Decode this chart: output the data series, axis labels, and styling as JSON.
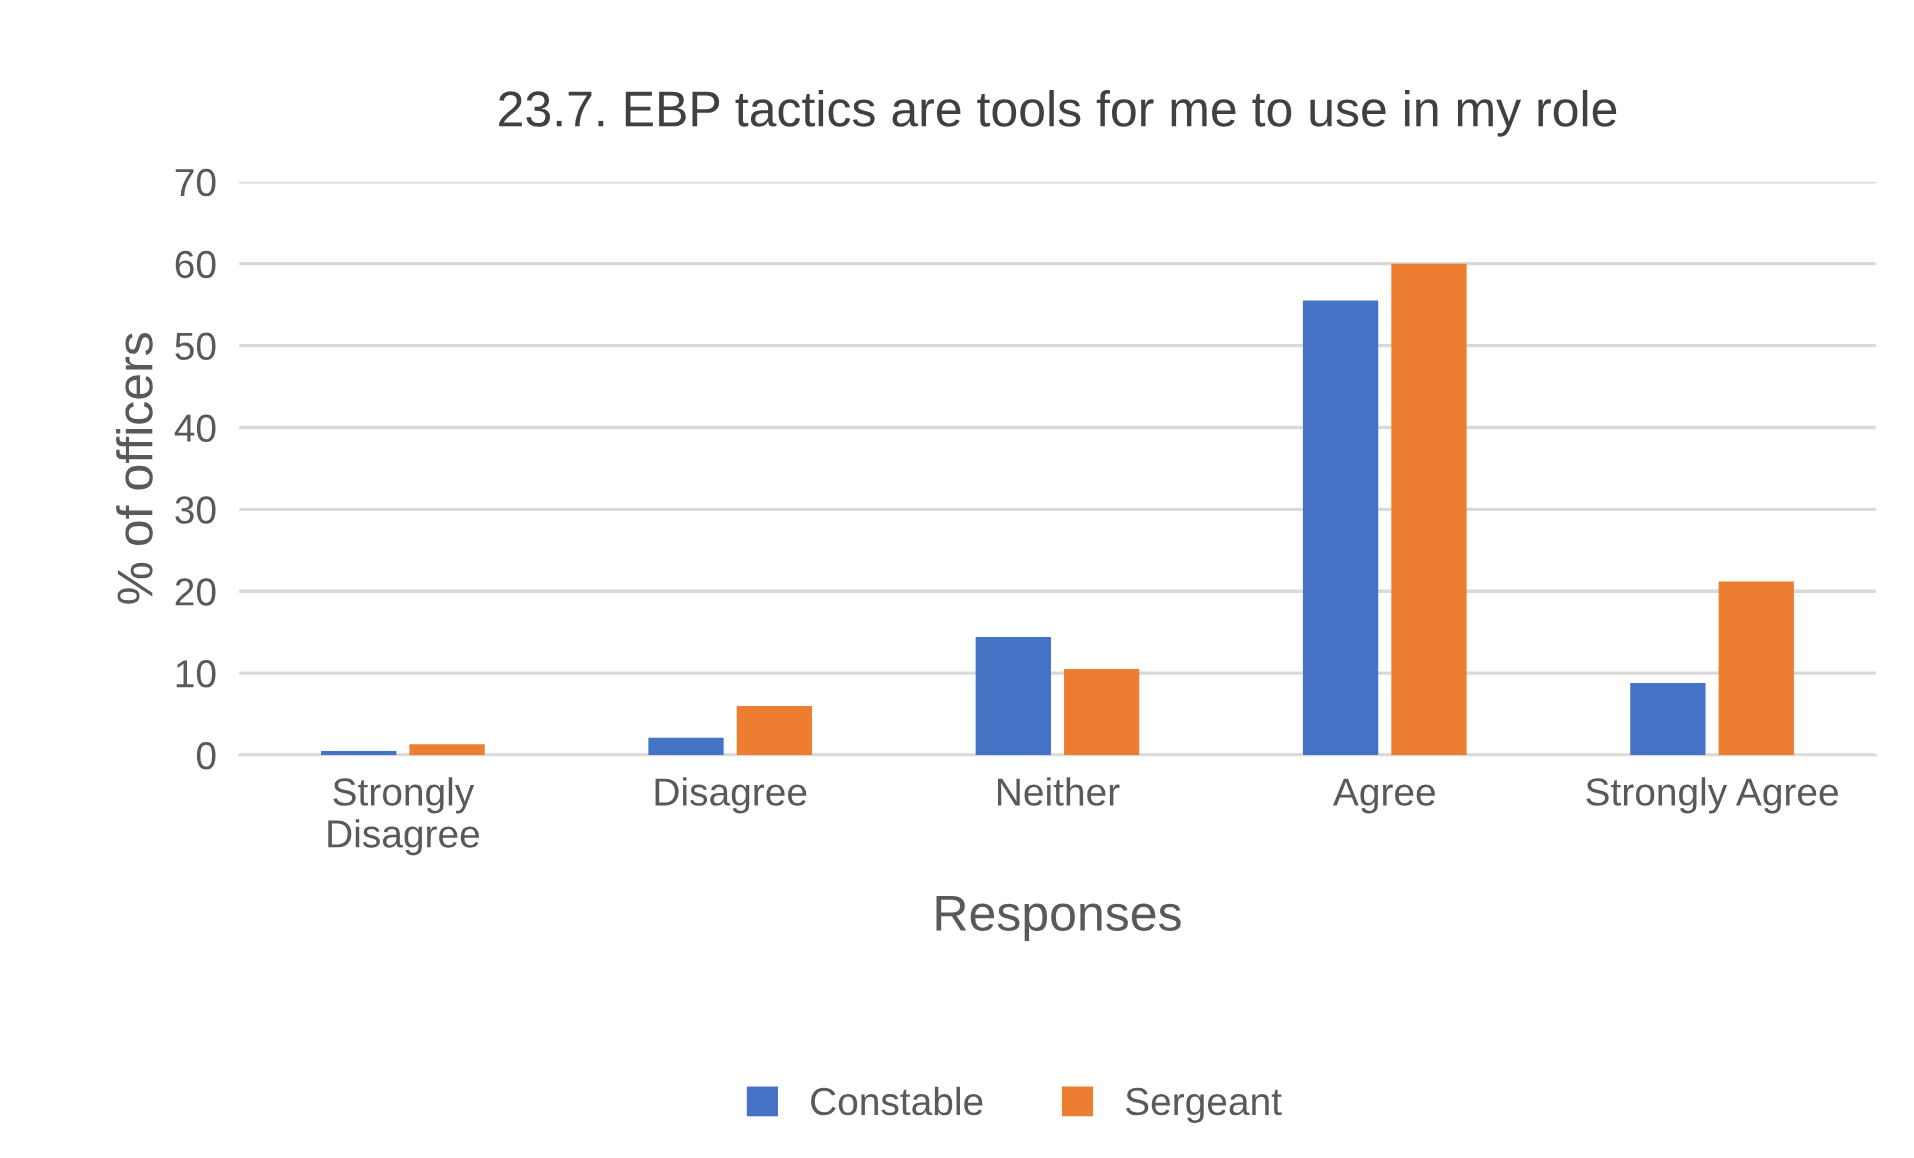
{
  "chart_data": {
    "type": "bar",
    "title": "23.7. EBP tactics are tools for me to use in my role",
    "xlabel": "Responses",
    "ylabel": "% of officers",
    "categories": [
      "Strongly\nDisagree",
      "Disagree",
      "Neither",
      "Agree",
      "Strongly Agree"
    ],
    "series": [
      {
        "name": "Constable",
        "color": "#4472c4",
        "values": [
          0.5,
          2.1,
          14.4,
          55.5,
          8.8
        ]
      },
      {
        "name": "Sergeant",
        "color": "#ed7d31",
        "values": [
          1.3,
          6.0,
          10.5,
          60,
          21.2
        ]
      }
    ],
    "ylim": [
      0,
      70
    ],
    "yticks": [
      0,
      10,
      20,
      30,
      40,
      50,
      60,
      70
    ],
    "grid": "y",
    "legend": "bottom"
  }
}
